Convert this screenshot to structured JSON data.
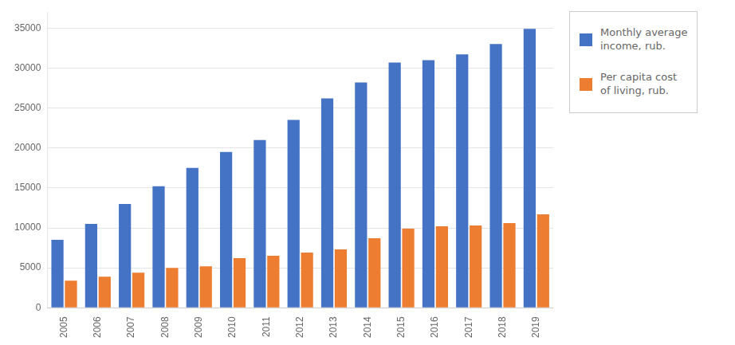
{
  "chart_data": {
    "type": "bar",
    "categories": [
      "2005",
      "2006",
      "2007",
      "2008",
      "2009",
      "2010",
      "2011",
      "2012",
      "2013",
      "2014",
      "2015",
      "2016",
      "2017",
      "2018",
      "2019"
    ],
    "series": [
      {
        "name": "Monthly average\nincome, rub.",
        "color": "#4472C4",
        "values": [
          8500,
          10500,
          13000,
          15200,
          17500,
          19500,
          21000,
          23500,
          26200,
          28200,
          30700,
          31000,
          31700,
          33000,
          34900
        ]
      },
      {
        "name": "Per capita cost\nof living, rub.",
        "color": "#ED7D31",
        "values": [
          3400,
          3900,
          4400,
          5000,
          5200,
          6200,
          6500,
          6900,
          7300,
          8700,
          9900,
          10200,
          10300,
          10600,
          11700
        ]
      }
    ],
    "ylim": [
      0,
      37000
    ],
    "yticks": [
      0,
      5000,
      10000,
      15000,
      20000,
      25000,
      30000,
      35000
    ],
    "grid": true,
    "legend": "right"
  }
}
